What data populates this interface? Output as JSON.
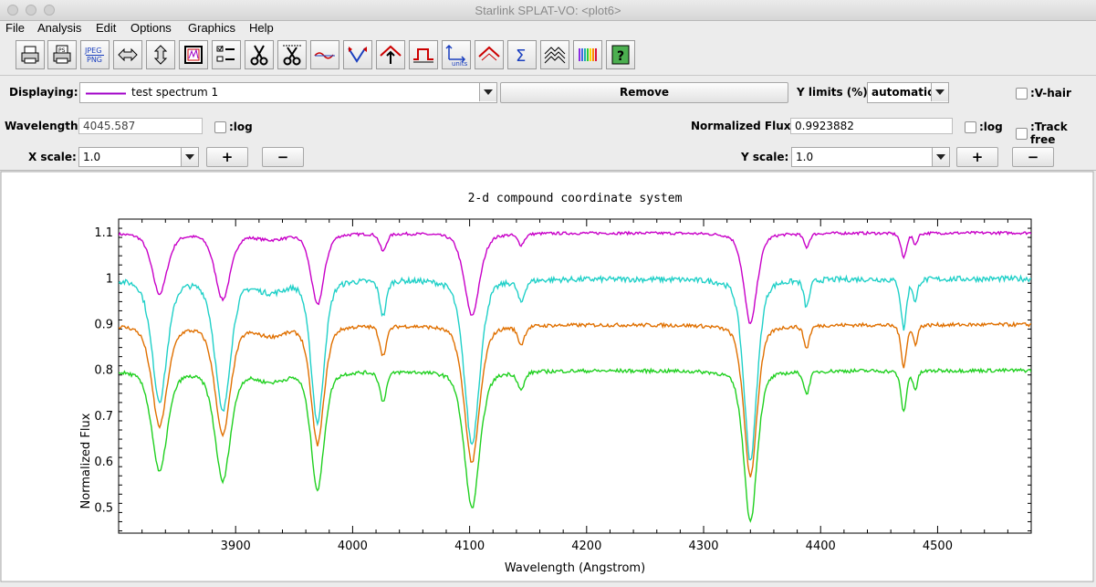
{
  "window": {
    "title": "Starlink SPLAT-VO: <plot6>"
  },
  "menu": [
    {
      "label": "File"
    },
    {
      "label": "Analysis"
    },
    {
      "label": "Edit"
    },
    {
      "label": "Options"
    },
    {
      "label": "Graphics"
    },
    {
      "label": "Help"
    }
  ],
  "toolbar": {
    "buttons": [
      {
        "name": "print-icon"
      },
      {
        "name": "print-postscript-icon"
      },
      {
        "name": "export-jpeg-png-icon",
        "text": "JPEG PNG"
      },
      {
        "name": "horizontal-fit-icon"
      },
      {
        "name": "vertical-fit-icon"
      },
      {
        "name": "graphics-window-icon"
      },
      {
        "name": "line-properties-icon"
      },
      {
        "name": "cut-icon"
      },
      {
        "name": "cut-range-icon"
      },
      {
        "name": "polynomial-fit-icon"
      },
      {
        "name": "line-fit-icon"
      },
      {
        "name": "interpolate-icon"
      },
      {
        "name": "filter-icon"
      },
      {
        "name": "units-icon",
        "text": "units"
      },
      {
        "name": "flip-icon"
      },
      {
        "name": "statistics-icon"
      },
      {
        "name": "stack-icon"
      },
      {
        "name": "colour-spectrum-icon"
      },
      {
        "name": "help-icon"
      }
    ]
  },
  "controls": {
    "displaying_label": "Displaying:",
    "displaying_value": "test spectrum 1",
    "displaying_color": "#a000c8",
    "remove_label": "Remove",
    "ylimits_label": "Y limits (%):",
    "ylimits_value": "automatic",
    "vhair_label": ":V-hair",
    "wavelength_label": "Wavelength:",
    "wavelength_value": "4045.587",
    "wl_log_label": ":log",
    "flux_label": "Normalized Flux:",
    "flux_value": "0.9923882",
    "flux_log_label": ":log",
    "trackfree_label": ":Track free",
    "xscale_label": "X scale:",
    "xscale_value": "1.0",
    "yscale_label": "Y scale:",
    "yscale_value": "1.0",
    "plus": "+",
    "minus": "−"
  },
  "chart_data": {
    "type": "line",
    "title": "2-d compound coordinate system",
    "xlabel": "Wavelength (Angstrom)",
    "ylabel": "Normalized Flux",
    "xlim": [
      3800,
      4580
    ],
    "ylim": [
      0.445,
      1.13
    ],
    "xticks": [
      3900,
      4000,
      4100,
      4200,
      4300,
      4400,
      4500
    ],
    "yticks": [
      0.5,
      0.6,
      0.7,
      0.8,
      0.9,
      1,
      1.1
    ],
    "grid": false,
    "series": [
      {
        "color": "#c800c8",
        "continuum": 1.1,
        "scale": 0.6,
        "noise": 0.003
      },
      {
        "color": "#20d0c8",
        "continuum": 1.0,
        "scale": 1.2,
        "noise": 0.006
      },
      {
        "color": "#e07000",
        "continuum": 0.9,
        "scale": 1.0,
        "noise": 0.004
      },
      {
        "color": "#20d020",
        "continuum": 0.8,
        "scale": 1.0,
        "noise": 0.004
      }
    ],
    "absorption_lines": [
      {
        "center": 3835,
        "depth": 0.22,
        "width": 7
      },
      {
        "center": 3889,
        "depth": 0.24,
        "width": 7
      },
      {
        "center": 3970,
        "depth": 0.26,
        "width": 6
      },
      {
        "center": 4026,
        "depth": 0.065,
        "width": 3
      },
      {
        "center": 4102,
        "depth": 0.3,
        "width": 7
      },
      {
        "center": 4144,
        "depth": 0.04,
        "width": 3
      },
      {
        "center": 4340,
        "depth": 0.33,
        "width": 6
      },
      {
        "center": 4388,
        "depth": 0.05,
        "width": 2.5
      },
      {
        "center": 4471,
        "depth": 0.09,
        "width": 2.5
      },
      {
        "center": 4481,
        "depth": 0.04,
        "width": 2
      }
    ]
  }
}
